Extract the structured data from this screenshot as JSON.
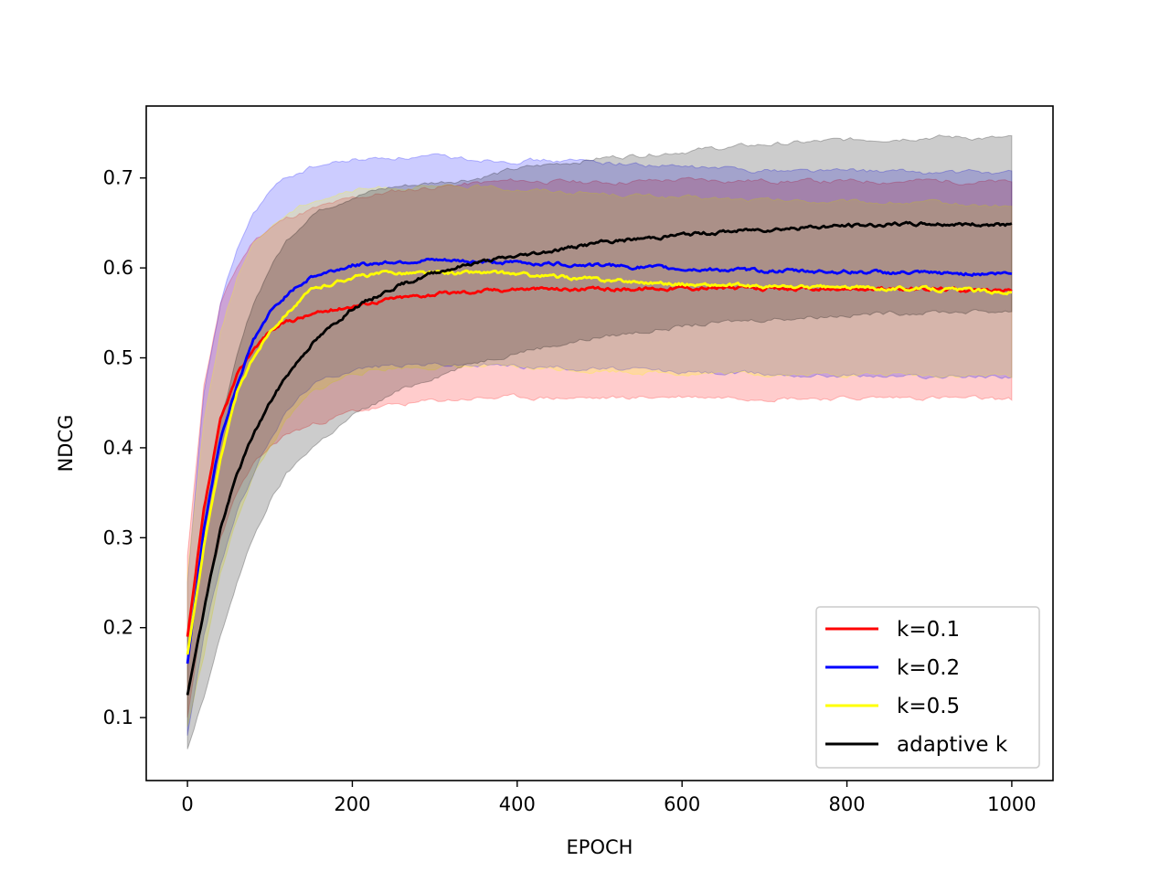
{
  "chart_data": {
    "type": "line",
    "title": "",
    "xlabel": "EPOCH",
    "ylabel": "NDCG",
    "xlim": [
      -50,
      1050
    ],
    "ylim": [
      0.03,
      0.78
    ],
    "xticks": [
      0,
      200,
      400,
      600,
      800,
      1000
    ],
    "xtick_labels": [
      "0",
      "200",
      "400",
      "600",
      "800",
      "1000"
    ],
    "yticks": [
      0.1,
      0.2,
      0.3,
      0.4,
      0.5,
      0.6,
      0.7
    ],
    "ytick_labels": [
      "0.1",
      "0.2",
      "0.3",
      "0.4",
      "0.5",
      "0.6",
      "0.7"
    ],
    "grid": false,
    "legend_position": "lower-right",
    "x": [
      0,
      20,
      40,
      60,
      80,
      100,
      120,
      150,
      200,
      250,
      300,
      350,
      400,
      500,
      600,
      700,
      800,
      900,
      1000
    ],
    "series": [
      {
        "name": "k=0.1",
        "color": "#ff0000",
        "mean": [
          0.19,
          0.33,
          0.43,
          0.48,
          0.51,
          0.53,
          0.54,
          0.548,
          0.558,
          0.566,
          0.571,
          0.574,
          0.577,
          0.576,
          0.578,
          0.577,
          0.576,
          0.577,
          0.575
        ],
        "upper": [
          0.28,
          0.47,
          0.56,
          0.6,
          0.63,
          0.645,
          0.655,
          0.665,
          0.677,
          0.685,
          0.69,
          0.694,
          0.697,
          0.695,
          0.698,
          0.697,
          0.696,
          0.697,
          0.695
        ],
        "lower": [
          0.1,
          0.22,
          0.3,
          0.35,
          0.38,
          0.4,
          0.415,
          0.425,
          0.44,
          0.447,
          0.452,
          0.455,
          0.456,
          0.455,
          0.457,
          0.456,
          0.455,
          0.456,
          0.453
        ]
      },
      {
        "name": "k=0.2",
        "color": "#0000ff",
        "mean": [
          0.16,
          0.31,
          0.41,
          0.47,
          0.52,
          0.55,
          0.57,
          0.59,
          0.603,
          0.607,
          0.608,
          0.607,
          0.606,
          0.603,
          0.599,
          0.597,
          0.596,
          0.594,
          0.594
        ],
        "upper": [
          0.25,
          0.46,
          0.56,
          0.62,
          0.66,
          0.685,
          0.7,
          0.712,
          0.72,
          0.723,
          0.723,
          0.721,
          0.72,
          0.718,
          0.712,
          0.709,
          0.708,
          0.706,
          0.706
        ],
        "lower": [
          0.08,
          0.19,
          0.27,
          0.33,
          0.37,
          0.41,
          0.44,
          0.47,
          0.488,
          0.492,
          0.493,
          0.492,
          0.491,
          0.488,
          0.484,
          0.482,
          0.481,
          0.479,
          0.48
        ]
      },
      {
        "name": "k=0.5",
        "color": "#ffff00",
        "mean": [
          0.17,
          0.29,
          0.39,
          0.46,
          0.5,
          0.53,
          0.55,
          0.575,
          0.59,
          0.595,
          0.594,
          0.595,
          0.593,
          0.587,
          0.582,
          0.579,
          0.578,
          0.577,
          0.573
        ],
        "upper": [
          0.26,
          0.43,
          0.53,
          0.59,
          0.625,
          0.645,
          0.66,
          0.675,
          0.686,
          0.69,
          0.689,
          0.69,
          0.688,
          0.683,
          0.678,
          0.675,
          0.673,
          0.672,
          0.668
        ],
        "lower": [
          0.09,
          0.17,
          0.26,
          0.32,
          0.37,
          0.4,
          0.43,
          0.46,
          0.483,
          0.489,
          0.49,
          0.49,
          0.489,
          0.486,
          0.483,
          0.482,
          0.482,
          0.481,
          0.48
        ]
      },
      {
        "name": "adaptive k",
        "color": "#000000",
        "mean": [
          0.125,
          0.22,
          0.31,
          0.37,
          0.415,
          0.45,
          0.48,
          0.515,
          0.555,
          0.578,
          0.595,
          0.606,
          0.613,
          0.628,
          0.637,
          0.643,
          0.647,
          0.649,
          0.648
        ],
        "upper": [
          0.19,
          0.33,
          0.43,
          0.5,
          0.56,
          0.6,
          0.63,
          0.66,
          0.68,
          0.69,
          0.695,
          0.7,
          0.71,
          0.722,
          0.73,
          0.737,
          0.742,
          0.746,
          0.744
        ],
        "lower": [
          0.065,
          0.12,
          0.19,
          0.25,
          0.3,
          0.34,
          0.37,
          0.4,
          0.435,
          0.46,
          0.48,
          0.495,
          0.507,
          0.523,
          0.535,
          0.543,
          0.548,
          0.551,
          0.552
        ]
      }
    ]
  }
}
